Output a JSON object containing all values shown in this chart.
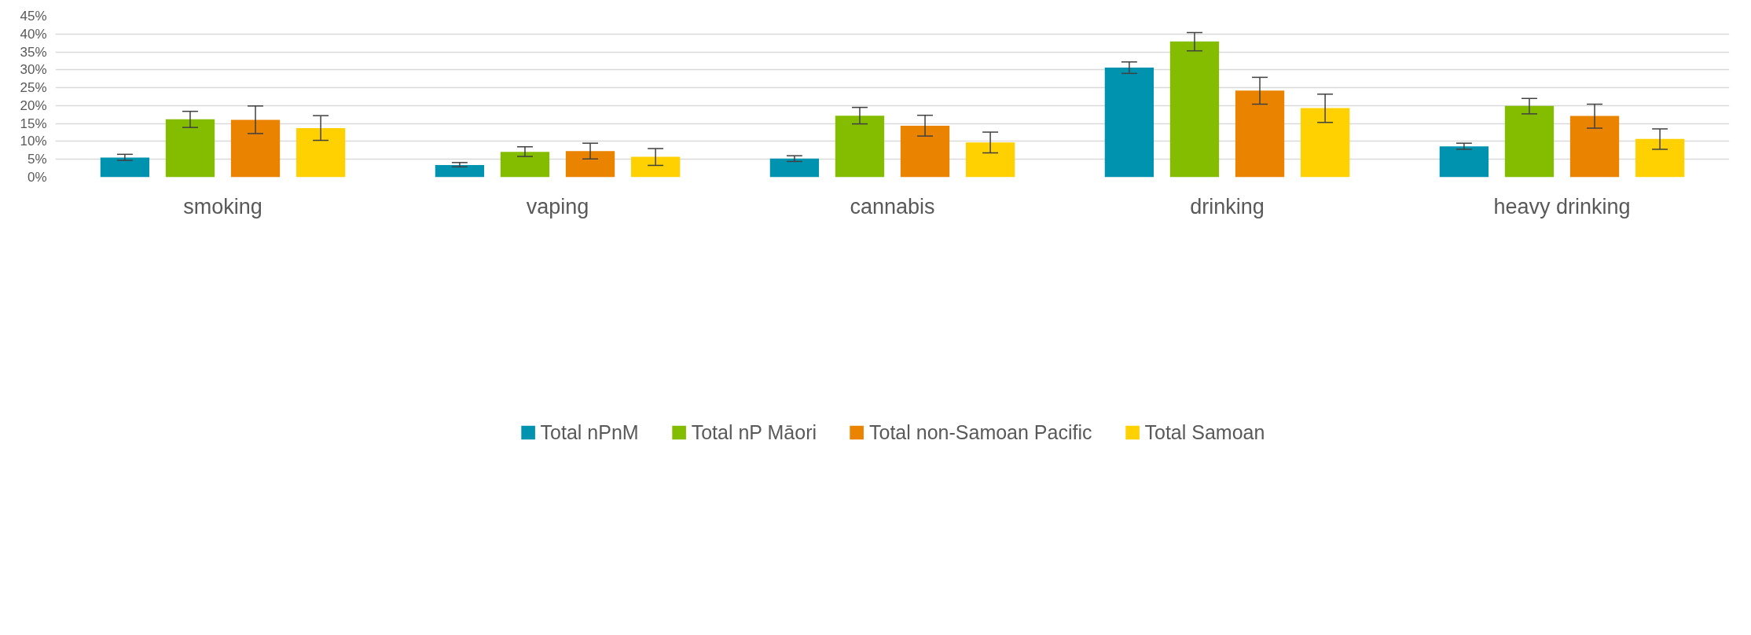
{
  "chart_data": {
    "type": "bar",
    "categories": [
      "smoking",
      "vaping",
      "cannabis",
      "drinking",
      "heavy drinking"
    ],
    "series": [
      {
        "name": "Total nPnM",
        "color": "#0093b0",
        "values": [
          5.5,
          3.4,
          5.2,
          30.6,
          8.6
        ],
        "errors": [
          [
            4.7,
            6.4
          ],
          [
            2.9,
            4.1
          ],
          [
            4.4,
            6.0
          ],
          [
            29.0,
            32.2
          ],
          [
            7.8,
            9.5
          ]
        ]
      },
      {
        "name": "Total nP Māori",
        "color": "#84bd00",
        "values": [
          16.2,
          7.1,
          17.2,
          37.9,
          19.9
        ],
        "errors": [
          [
            13.9,
            18.4
          ],
          [
            5.8,
            8.5
          ],
          [
            14.9,
            19.5
          ],
          [
            35.3,
            40.4
          ],
          [
            17.7,
            22.0
          ]
        ]
      },
      {
        "name": "Total non-Samoan Pacific",
        "color": "#e98300",
        "values": [
          16.0,
          7.3,
          14.4,
          24.2,
          17.1
        ],
        "errors": [
          [
            12.2,
            19.9
          ],
          [
            5.1,
            9.5
          ],
          [
            11.5,
            17.3
          ],
          [
            20.4,
            27.9
          ],
          [
            13.7,
            20.4
          ]
        ]
      },
      {
        "name": "Total Samoan",
        "color": "#ffd100",
        "values": [
          13.7,
          5.7,
          9.7,
          19.3,
          10.7
        ],
        "errors": [
          [
            10.3,
            17.2
          ],
          [
            3.3,
            8.0
          ],
          [
            6.8,
            12.6
          ],
          [
            15.3,
            23.2
          ],
          [
            7.8,
            13.5
          ]
        ]
      }
    ],
    "ylim": [
      0,
      45
    ],
    "yticks": [
      {
        "value": 0,
        "label": "0%"
      },
      {
        "value": 5,
        "label": "5%"
      },
      {
        "value": 10,
        "label": "10%"
      },
      {
        "value": 15,
        "label": "15%"
      },
      {
        "value": 20,
        "label": "20%"
      },
      {
        "value": 25,
        "label": "25%"
      },
      {
        "value": 30,
        "label": "30%"
      },
      {
        "value": 35,
        "label": "35%"
      },
      {
        "value": 40,
        "label": "40%"
      },
      {
        "value": 45,
        "label": "45%"
      }
    ],
    "grid": "y",
    "legend": "bottom"
  }
}
